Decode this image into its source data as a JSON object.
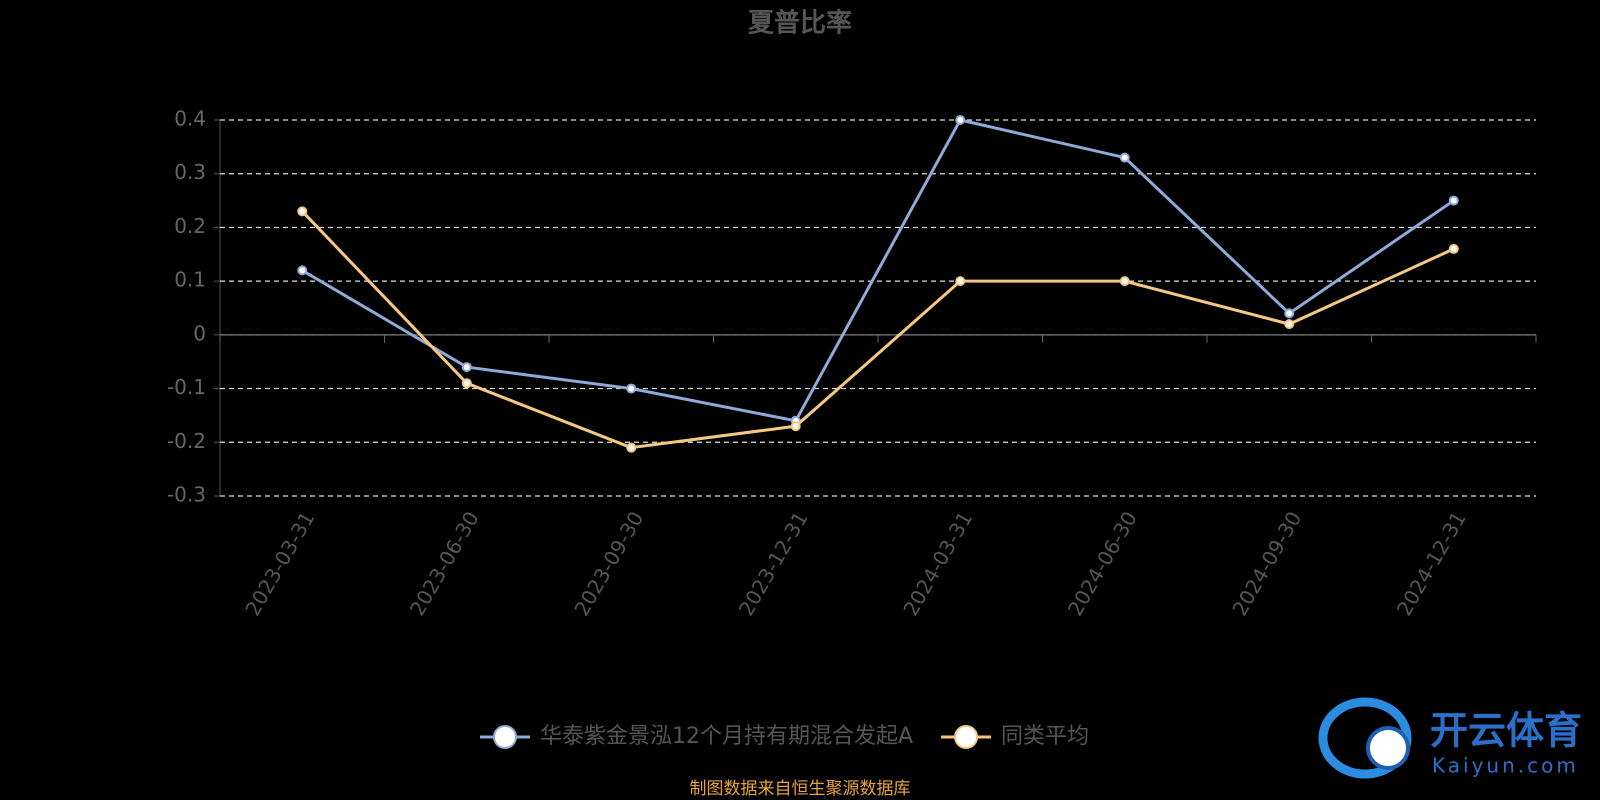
{
  "chart_data": {
    "type": "line",
    "title": "夏普比率",
    "categories": [
      "2023-03-31",
      "2023-06-30",
      "2023-09-30",
      "2023-12-31",
      "2024-03-31",
      "2024-06-30",
      "2024-09-30",
      "2024-12-31"
    ],
    "series": [
      {
        "name": "华泰紫金景泓12个月持有期混合发起A",
        "color": "#8fa9d8",
        "values": [
          0.12,
          -0.06,
          -0.1,
          -0.16,
          0.4,
          0.33,
          0.04,
          0.25
        ]
      },
      {
        "name": "同类平均",
        "color": "#f5c882",
        "values": [
          0.23,
          -0.09,
          -0.21,
          -0.17,
          0.1,
          0.1,
          0.02,
          0.16
        ]
      }
    ],
    "ylim": [
      -0.3,
      0.4
    ],
    "yticks": [
      -0.3,
      -0.2,
      -0.1,
      0,
      0.1,
      0.2,
      0.3,
      0.4
    ],
    "grid": true,
    "legend": "bottom",
    "source": "制图数据来自恒生聚源数据库",
    "watermark": [
      "开云体育",
      "Kaiyun.com"
    ]
  }
}
